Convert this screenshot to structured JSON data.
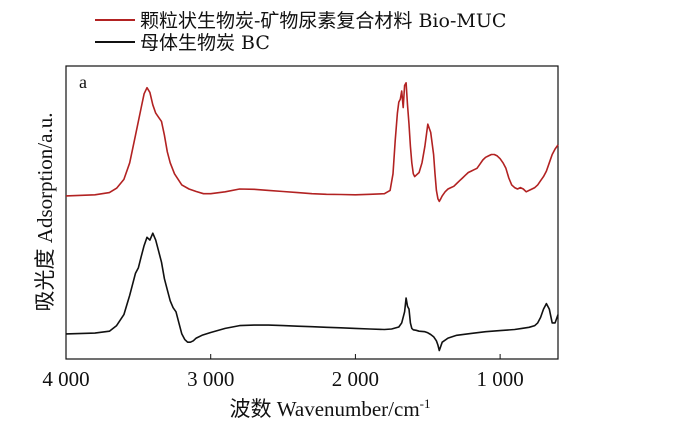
{
  "chart_data": {
    "type": "line",
    "panel_label": "a",
    "xlabel": "波数 Wavenumber/cm",
    "xlabel_sup": "-1",
    "ylabel": "吸光度 Adsorption/a.u.",
    "xlim": [
      4000,
      600
    ],
    "x_reversed": true,
    "x_ticks": [
      {
        "value": 4000,
        "label": "4 000"
      },
      {
        "value": 3000,
        "label": "3 000"
      },
      {
        "value": 2000,
        "label": "2 000"
      },
      {
        "value": 1000,
        "label": "1 000"
      }
    ],
    "ylim": [
      0,
      100
    ],
    "y_ticks_shown": false,
    "legend_position": "top-left, outside plot",
    "series": [
      {
        "name": "颗粒状生物炭-矿物尿素复合材料 Bio-MUC",
        "color": "#b22222",
        "x": [
          4000,
          3800,
          3700,
          3650,
          3600,
          3560,
          3520,
          3480,
          3460,
          3440,
          3420,
          3400,
          3380,
          3360,
          3340,
          3320,
          3300,
          3280,
          3250,
          3200,
          3150,
          3100,
          3050,
          3000,
          2900,
          2800,
          2700,
          2600,
          2500,
          2400,
          2300,
          2200,
          2100,
          2000,
          1900,
          1800,
          1760,
          1740,
          1725,
          1710,
          1700,
          1690,
          1680,
          1670,
          1660,
          1650,
          1640,
          1630,
          1620,
          1610,
          1600,
          1590,
          1580,
          1560,
          1540,
          1520,
          1500,
          1480,
          1460,
          1450,
          1440,
          1430,
          1420,
          1410,
          1400,
          1380,
          1360,
          1340,
          1320,
          1300,
          1280,
          1260,
          1240,
          1220,
          1200,
          1180,
          1160,
          1140,
          1120,
          1100,
          1080,
          1060,
          1040,
          1020,
          1000,
          980,
          960,
          940,
          920,
          900,
          880,
          860,
          840,
          820,
          800,
          780,
          760,
          740,
          720,
          700,
          680,
          660,
          640,
          620,
          600
        ],
        "values": [
          58.0,
          58.4,
          59.2,
          60.8,
          64.0,
          70.0,
          80.0,
          90.0,
          95.0,
          97.2,
          95.5,
          91.0,
          88.0,
          86.5,
          85.0,
          80.0,
          74.0,
          70.0,
          66.0,
          62.0,
          60.5,
          59.6,
          58.8,
          58.8,
          59.5,
          60.5,
          60.4,
          60.0,
          59.6,
          59.2,
          58.8,
          58.6,
          58.5,
          58.4,
          58.6,
          58.8,
          60.0,
          66.0,
          78.0,
          88.0,
          92.0,
          93.0,
          96.0,
          90.0,
          98.0,
          99.0,
          91.0,
          84.0,
          76.0,
          70.0,
          66.0,
          65.0,
          65.5,
          66.5,
          70.0,
          76.0,
          84.0,
          81.0,
          73.0,
          66.0,
          60.0,
          57.0,
          56.0,
          57.0,
          58.0,
          59.5,
          60.5,
          61.0,
          61.5,
          62.5,
          63.5,
          64.5,
          65.5,
          66.5,
          67.0,
          67.5,
          68.0,
          69.5,
          71.0,
          72.0,
          72.5,
          73.0,
          73.0,
          72.5,
          71.5,
          70.0,
          68.0,
          64.5,
          62.0,
          61.0,
          60.5,
          61.0,
          60.5,
          59.5,
          60.0,
          60.5,
          61.0,
          62.0,
          63.5,
          65.0,
          67.0,
          70.0,
          73.0,
          75.0,
          76.5
        ]
      },
      {
        "name": "母体生物炭 BC",
        "color": "#111111",
        "x": [
          4000,
          3800,
          3700,
          3650,
          3600,
          3560,
          3520,
          3500,
          3480,
          3460,
          3440,
          3420,
          3400,
          3380,
          3360,
          3340,
          3320,
          3300,
          3280,
          3260,
          3240,
          3220,
          3200,
          3180,
          3160,
          3140,
          3120,
          3100,
          3060,
          3000,
          2900,
          2800,
          2700,
          2600,
          2500,
          2400,
          2300,
          2200,
          2100,
          2000,
          1900,
          1800,
          1750,
          1700,
          1680,
          1660,
          1650,
          1640,
          1630,
          1620,
          1610,
          1600,
          1580,
          1560,
          1520,
          1500,
          1480,
          1460,
          1440,
          1430,
          1420,
          1400,
          1360,
          1300,
          1200,
          1100,
          1000,
          900,
          850,
          800,
          760,
          740,
          720,
          700,
          680,
          660,
          640,
          620,
          600
        ],
        "values": [
          8.0,
          8.3,
          9.0,
          11.0,
          15.0,
          22.0,
          30.0,
          32.0,
          36.0,
          40.0,
          43.0,
          42.0,
          44.5,
          42.0,
          38.0,
          34.0,
          28.0,
          24.0,
          20.0,
          17.5,
          16.0,
          12.0,
          8.0,
          6.0,
          5.0,
          5.0,
          5.5,
          6.5,
          7.5,
          8.5,
          10.0,
          11.0,
          11.2,
          11.2,
          11.0,
          10.8,
          10.6,
          10.4,
          10.2,
          10.0,
          9.8,
          9.6,
          9.8,
          10.5,
          12.0,
          16.0,
          21.0,
          18.0,
          17.0,
          12.0,
          10.0,
          9.5,
          9.3,
          9.0,
          8.8,
          8.4,
          7.8,
          7.0,
          5.5,
          4.0,
          2.0,
          5.0,
          6.5,
          7.5,
          8.2,
          8.8,
          9.2,
          9.6,
          10.0,
          10.4,
          11.0,
          12.0,
          14.0,
          17.0,
          19.0,
          17.0,
          12.0,
          12.0,
          15.0
        ]
      }
    ]
  }
}
